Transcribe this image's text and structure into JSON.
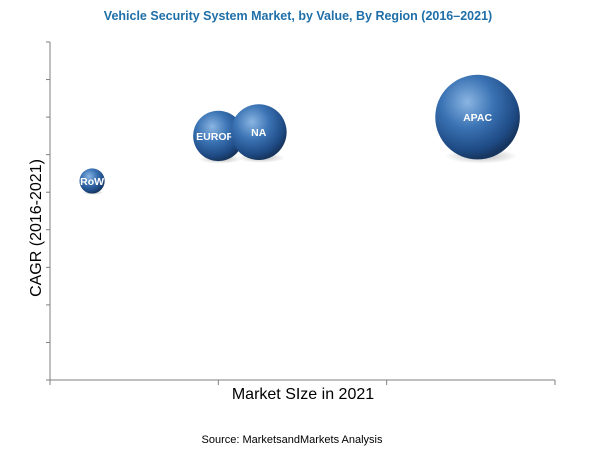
{
  "chart_data": {
    "type": "scatter",
    "title": "Vehicle Security System Market, by Value, By Region (2016–2021)",
    "xlabel": "Market SIze in 2021",
    "ylabel": "CAGR (2016-2021)",
    "source": "Source: MarketsandMarkets Analysis",
    "xlim": [
      0,
      3
    ],
    "ylim": [
      0,
      9
    ],
    "x_ticks": 4,
    "y_ticks": 10,
    "grid": false,
    "legend": "none",
    "series": [
      {
        "points": [
          {
            "label": "RoW",
            "x": 0.25,
            "y": 5.3,
            "size": 0.7
          },
          {
            "label": "EUROPE",
            "x": 1.0,
            "y": 6.5,
            "size": 1.4
          },
          {
            "label": "NA",
            "x": 1.24,
            "y": 6.6,
            "size": 1.55
          },
          {
            "label": "APAC",
            "x": 2.54,
            "y": 7.0,
            "size": 2.35
          }
        ]
      }
    ]
  },
  "colors": {
    "title": "#1f6fa8",
    "bubble_light": "#6f9fd2",
    "bubble_mid": "#2f66a6",
    "bubble_dark": "#16355f",
    "axis": "#7f7f7f"
  }
}
